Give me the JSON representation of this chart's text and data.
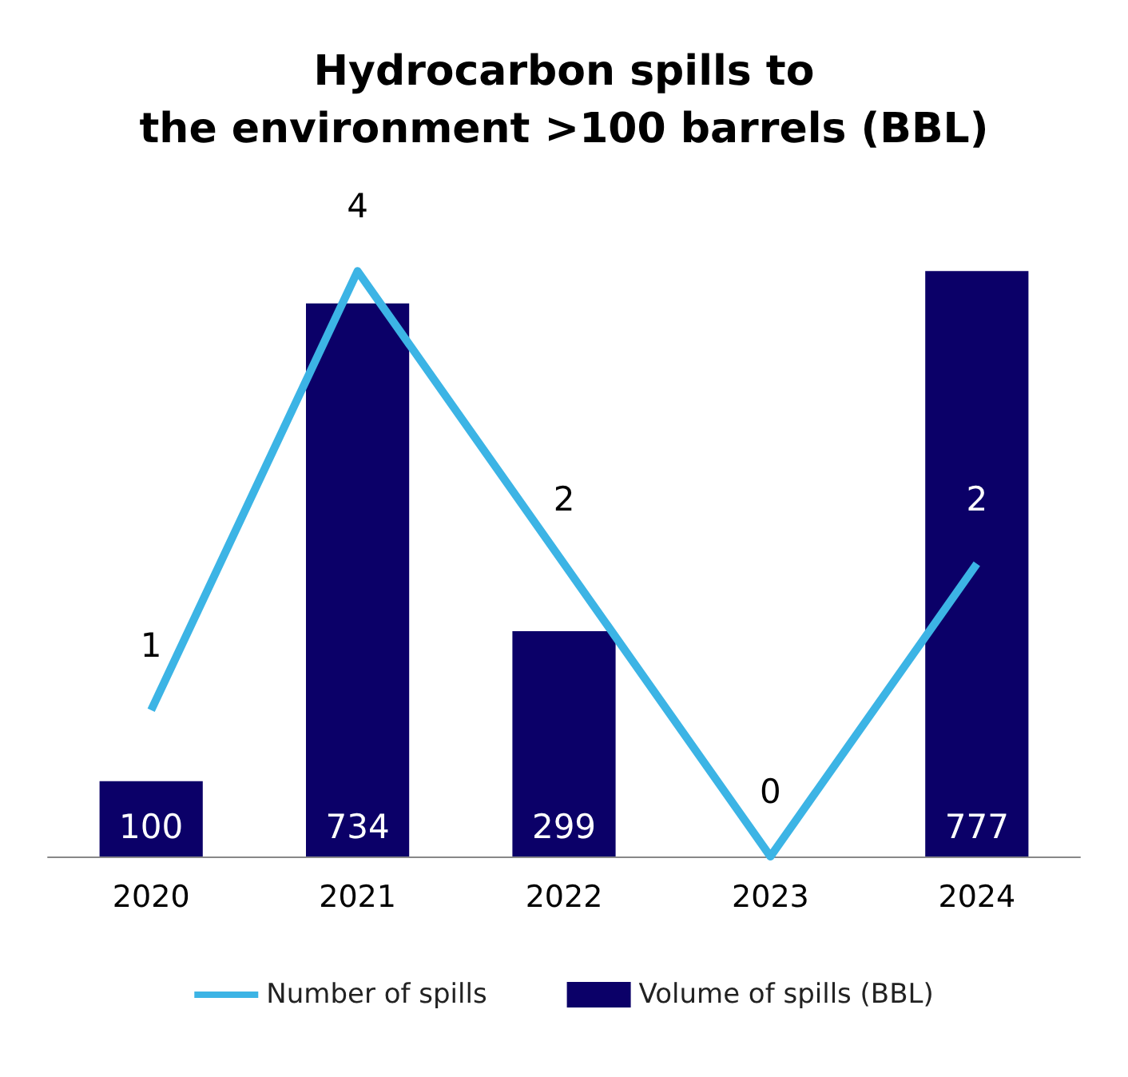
{
  "chart_data": {
    "type": "bar",
    "title": "Hydrocarbon spills to\nthe environment >100 barrels (BBL)",
    "categories": [
      "2020",
      "2021",
      "2022",
      "2023",
      "2024"
    ],
    "series": [
      {
        "name": "Number of spills",
        "type": "line",
        "axis": "y2",
        "color": "#3cb4e5",
        "values": [
          1,
          4,
          2,
          0,
          2
        ]
      },
      {
        "name": "Volume of spills (BBL)",
        "color": "#0b0068",
        "values": [
          100,
          734,
          299,
          null,
          777
        ]
      }
    ],
    "data_labels": true,
    "legend": "bottom",
    "marker": "none",
    "grid": false,
    "tick_labels": "x"
  }
}
